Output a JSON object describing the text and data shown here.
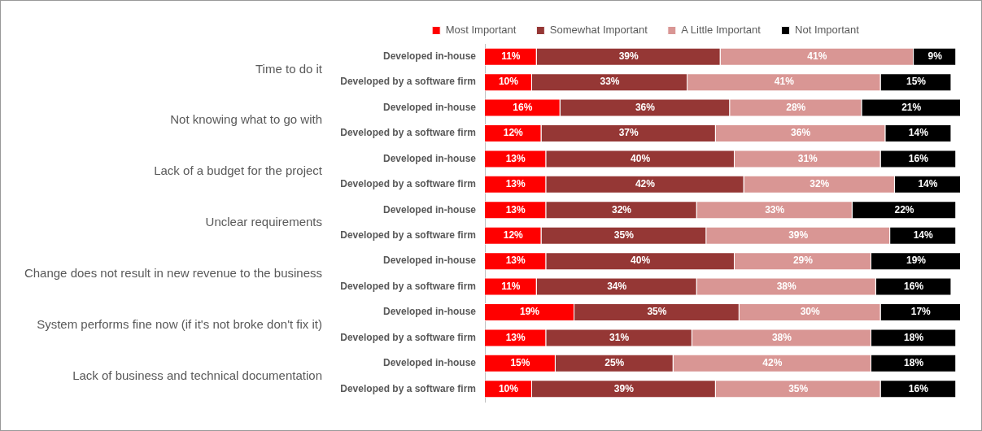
{
  "chart_data": {
    "type": "bar",
    "orientation": "horizontal",
    "stacked": true,
    "legend": "top",
    "categories": [
      "Developed in-house",
      "Developed by a software firm",
      "Developed in-house",
      "Developed by a software firm",
      "Developed in-house",
      "Developed by a software firm",
      "Developed in-house",
      "Developed by a software firm",
      "Developed in-house",
      "Developed by a software firm",
      "Developed in-house",
      "Developed by a software firm",
      "Developed in-house",
      "Developed by a software firm"
    ],
    "annotations": [
      "Time to do it",
      "Not knowing what to go with",
      "Lack of a budget for the project",
      "Unclear requirements",
      "Change does not result in new revenue to the business",
      "System performs fine now (if it's not broke don't fix it)",
      "Lack of business and technical documentation"
    ],
    "series": [
      {
        "name": "Most Important",
        "color": "#ff0000",
        "values": [
          11,
          10,
          16,
          12,
          13,
          13,
          13,
          12,
          13,
          11,
          19,
          13,
          15,
          10
        ],
        "value_labels": [
          "11%",
          "10%",
          "16%",
          "12%",
          "13%",
          "13%",
          "13%",
          "12%",
          "13%",
          "11%",
          "19%",
          "13%",
          "15%",
          "10%"
        ]
      },
      {
        "name": "Somewhat Important",
        "color": "#953735",
        "values": [
          39,
          33,
          36,
          37,
          40,
          42,
          32,
          35,
          40,
          34,
          35,
          31,
          25,
          39
        ],
        "value_labels": [
          "39%",
          "33%",
          "36%",
          "37%",
          "40%",
          "42%",
          "32%",
          "35%",
          "40%",
          "34%",
          "35%",
          "31%",
          "25%",
          "39%"
        ]
      },
      {
        "name": "A Little Important",
        "color": "#d99694",
        "values": [
          41,
          41,
          28,
          36,
          31,
          32,
          33,
          39,
          29,
          38,
          30,
          38,
          42,
          35
        ],
        "value_labels": [
          "41%",
          "41%",
          "28%",
          "36%",
          "31%",
          "32%",
          "33%",
          "39%",
          "29%",
          "38%",
          "30%",
          "38%",
          "42%",
          "35%"
        ]
      },
      {
        "name": "Not Important",
        "color": "#000000",
        "values": [
          9,
          15,
          21,
          14,
          16,
          14,
          22,
          14,
          19,
          16,
          17,
          18,
          18,
          16
        ],
        "value_labels": [
          "9%",
          "15%",
          "21%",
          "14%",
          "16%",
          "14%",
          "22%",
          "14%",
          "19%",
          "16%",
          "17%",
          "18%",
          "18%",
          "16%"
        ]
      }
    ]
  }
}
